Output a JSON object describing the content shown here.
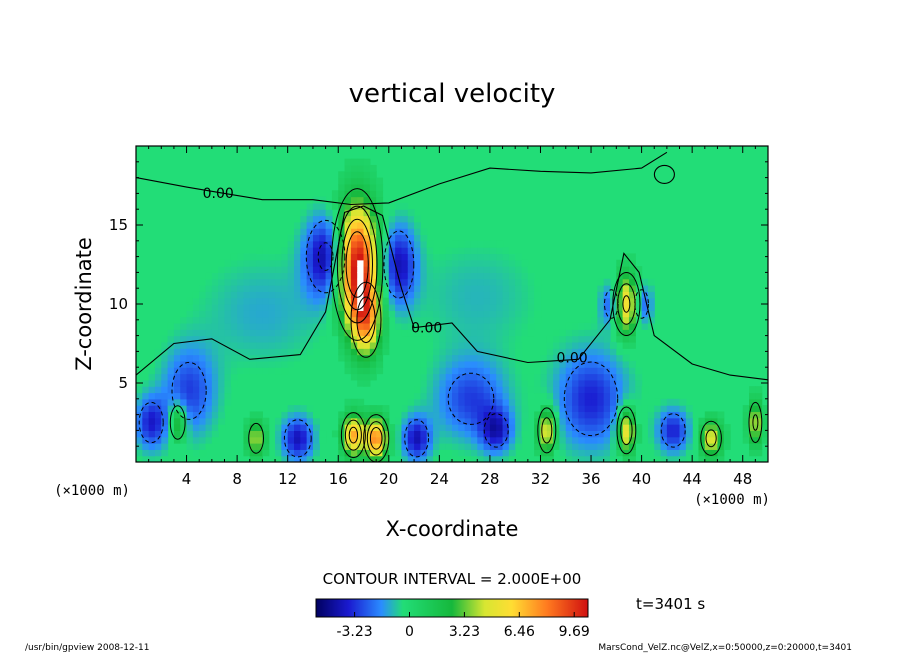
{
  "chart_data": {
    "type": "heatmap",
    "title": "vertical velocity",
    "xlabel": "X-coordinate",
    "ylabel": "Z-coordinate",
    "x_unit": "(×1000 m)",
    "y_unit": "(×1000 m)",
    "xlim": [
      0,
      50
    ],
    "ylim": [
      0,
      20
    ],
    "x_ticks": [
      4,
      8,
      12,
      16,
      20,
      24,
      28,
      32,
      36,
      40,
      44,
      48
    ],
    "y_ticks": [
      5,
      10,
      15
    ],
    "contour_interval_text": "CONTOUR INTERVAL = 2.000E+00",
    "time_label": "t=3401 s",
    "colorbar_ticks": [
      "-3.23",
      "0",
      "3.23",
      "6.46",
      "9.69"
    ],
    "colorbar_range": [
      -5.5,
      10.5
    ],
    "contour_labels": [
      {
        "text": "0.00",
        "x": 6.5,
        "y": 16.7
      },
      {
        "text": "0.00",
        "x": 23.0,
        "y": 8.2
      },
      {
        "text": "0.00",
        "x": 34.5,
        "y": 6.3
      }
    ],
    "features": [
      {
        "kind": "updraft",
        "x": 17.5,
        "z": 12.5,
        "sx": 1.1,
        "sz": 2.6,
        "w": 11.0
      },
      {
        "kind": "updraft",
        "x": 18.2,
        "z": 9.0,
        "sx": 0.8,
        "sz": 1.6,
        "w": 6.0
      },
      {
        "kind": "downdraft",
        "x": 15.0,
        "z": 13.0,
        "sx": 1.2,
        "sz": 1.8,
        "w": -4.5
      },
      {
        "kind": "downdraft",
        "x": 20.8,
        "z": 12.5,
        "sx": 1.0,
        "sz": 1.8,
        "w": -4.0
      },
      {
        "kind": "updraft",
        "x": 38.8,
        "z": 10.0,
        "sx": 0.7,
        "sz": 1.3,
        "w": 6.5
      },
      {
        "kind": "downdraft",
        "x": 37.6,
        "z": 10.0,
        "sx": 0.6,
        "sz": 1.0,
        "w": -3.0
      },
      {
        "kind": "downdraft",
        "x": 40.0,
        "z": 10.0,
        "sx": 0.6,
        "sz": 1.0,
        "w": -3.0
      },
      {
        "kind": "downdraft",
        "x": 4.2,
        "z": 4.5,
        "sx": 1.5,
        "sz": 2.0,
        "w": -3.0
      },
      {
        "kind": "downdraft",
        "x": 26.5,
        "z": 4.0,
        "sx": 2.0,
        "sz": 1.8,
        "w": -3.0
      },
      {
        "kind": "downdraft",
        "x": 36.0,
        "z": 4.0,
        "sx": 2.0,
        "sz": 2.2,
        "w": -3.5
      },
      {
        "kind": "updraft",
        "x": 17.2,
        "z": 1.7,
        "sx": 0.6,
        "sz": 0.9,
        "w": 7.0
      },
      {
        "kind": "updraft",
        "x": 19.0,
        "z": 1.5,
        "sx": 0.6,
        "sz": 0.9,
        "w": 8.0
      },
      {
        "kind": "updraft",
        "x": 38.8,
        "z": 2.0,
        "sx": 0.5,
        "sz": 1.0,
        "w": 6.0
      },
      {
        "kind": "updraft",
        "x": 32.5,
        "z": 2.0,
        "sx": 0.5,
        "sz": 1.0,
        "w": 5.5
      },
      {
        "kind": "updraft",
        "x": 3.3,
        "z": 2.5,
        "sx": 0.5,
        "sz": 0.9,
        "w": 4.0
      },
      {
        "kind": "updraft",
        "x": 9.5,
        "z": 1.5,
        "sx": 0.5,
        "sz": 0.8,
        "w": 4.0
      },
      {
        "kind": "updraft",
        "x": 45.5,
        "z": 1.5,
        "sx": 0.6,
        "sz": 0.8,
        "w": 5.0
      },
      {
        "kind": "updraft",
        "x": 49.0,
        "z": 2.5,
        "sx": 0.4,
        "sz": 1.0,
        "w": 4.5
      },
      {
        "kind": "downdraft",
        "x": 12.8,
        "z": 1.5,
        "sx": 0.9,
        "sz": 1.0,
        "w": -4.0
      },
      {
        "kind": "downdraft",
        "x": 22.2,
        "z": 1.5,
        "sx": 0.8,
        "sz": 1.0,
        "w": -4.0
      },
      {
        "kind": "downdraft",
        "x": 1.2,
        "z": 2.5,
        "sx": 0.9,
        "sz": 1.2,
        "w": -3.5
      },
      {
        "kind": "downdraft",
        "x": 42.5,
        "z": 2.0,
        "sx": 0.9,
        "sz": 1.0,
        "w": -3.5
      },
      {
        "kind": "downdraft",
        "x": 28.5,
        "z": 2.0,
        "sx": 0.9,
        "sz": 1.0,
        "w": -3.5
      },
      {
        "kind": "weak",
        "x": 10.0,
        "z": 9.5,
        "sx": 3.5,
        "sz": 2.5,
        "w": -1.2
      },
      {
        "kind": "weak",
        "x": 27.0,
        "z": 10.5,
        "sx": 3.5,
        "sz": 2.5,
        "w": -1.0
      }
    ]
  },
  "footer": {
    "left": "/usr/bin/gpview   2008-12-11",
    "right": "MarsCond_VelZ.nc@VelZ,x=0:50000,z=0:20000,t=3401"
  },
  "colors": {
    "background_field": "#22dd77",
    "contour": "#000000"
  }
}
